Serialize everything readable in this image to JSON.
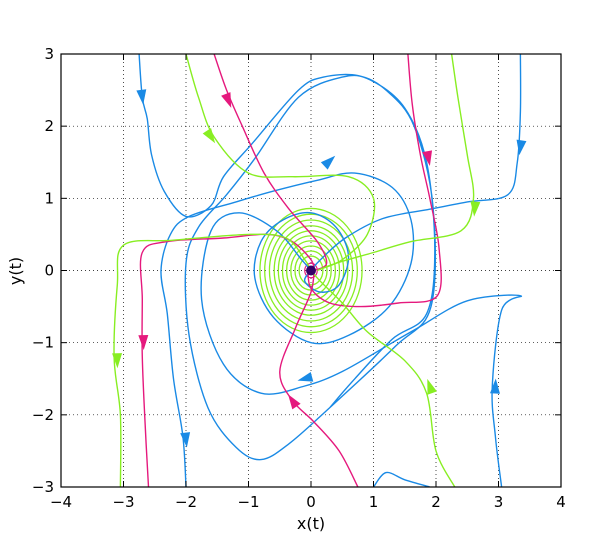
{
  "chart_data": {
    "type": "line",
    "subtype": "phase-portrait",
    "title": "",
    "xlabel": "x(t)",
    "ylabel": "y(t)",
    "xlim": [
      -4,
      4
    ],
    "ylim": [
      -3,
      3
    ],
    "xticks": [
      -4,
      -3,
      -2,
      -1,
      0,
      1,
      2,
      3,
      4
    ],
    "yticks": [
      -3,
      -2,
      -1,
      0,
      1,
      2,
      3
    ],
    "xtick_labels": [
      "−4",
      "−3",
      "−2",
      "−1",
      "0",
      "1",
      "2",
      "3",
      "4"
    ],
    "ytick_labels": [
      "−3",
      "−2",
      "−1",
      "0",
      "1",
      "2",
      "3"
    ],
    "grid": true,
    "grid_style": "dotted",
    "legend": "none",
    "equilibrium": {
      "x": 0,
      "y": 0,
      "color": "#330066"
    },
    "colors": {
      "blue": "#1a8ae5",
      "magenta": "#e5197d",
      "green": "#88ee22"
    },
    "series": [
      {
        "color": "#1a8ae5",
        "points": [
          [
            -2.75,
            3
          ],
          [
            -2.7,
            2.4
          ],
          [
            -2.62,
            2.1
          ],
          [
            -2.55,
            1.6
          ],
          [
            -2.35,
            1.1
          ],
          [
            -2.0,
            0.75
          ],
          [
            -1.6,
            0.9
          ],
          [
            -1.4,
            1.3
          ],
          [
            -0.95,
            1.75
          ],
          [
            -0.2,
            2.5
          ],
          [
            0.2,
            2.68
          ],
          [
            0.75,
            2.7
          ],
          [
            1.2,
            2.5
          ],
          [
            1.65,
            2.0
          ],
          [
            1.95,
            0.9
          ],
          [
            1.92,
            -0.5
          ],
          [
            1.35,
            -1.05
          ],
          [
            0.3,
            -1.9
          ],
          [
            -0.35,
            -2.4
          ],
          [
            -0.8,
            -2.62
          ],
          [
            -1.2,
            -2.45
          ],
          [
            -1.65,
            -1.9
          ],
          [
            -1.95,
            -0.9
          ],
          [
            -2.0,
            0.1
          ],
          [
            -1.8,
            0.6
          ],
          [
            -1.35,
            1.05
          ],
          [
            -0.9,
            1.55
          ],
          [
            -0.2,
            2.4
          ],
          [
            0.5,
            2.68
          ],
          [
            0.95,
            2.64
          ],
          [
            1.5,
            2.25
          ],
          [
            1.85,
            1.5
          ],
          [
            1.98,
            0.3
          ],
          [
            1.85,
            -0.6
          ],
          [
            1.3,
            -0.95
          ],
          [
            0.7,
            -1.5
          ],
          [
            0.3,
            -1.9
          ]
        ],
        "arrows": [
          [
            -2.7,
            2.4,
            1
          ],
          [
            0.3,
            1.52,
            1
          ]
        ]
      },
      {
        "color": "#1a8ae5",
        "points": [
          [
            3.35,
            3
          ],
          [
            3.35,
            2.2
          ],
          [
            3.3,
            1.5
          ],
          [
            3.15,
            1.05
          ],
          [
            2.5,
            0.95
          ],
          [
            1.9,
            0.85
          ],
          [
            1.15,
            0.72
          ],
          [
            0.55,
            0.45
          ],
          [
            0.15,
            0.15
          ],
          [
            0.02,
            0.02
          ]
        ],
        "arrows": [
          [
            3.35,
            1.7,
            1
          ]
        ]
      },
      {
        "color": "#1a8ae5",
        "points": [
          [
            3.05,
            -3
          ],
          [
            2.95,
            -2.3
          ],
          [
            2.9,
            -1.6
          ],
          [
            3.05,
            -0.55
          ],
          [
            3.35,
            -0.35
          ],
          [
            2.5,
            -0.42
          ],
          [
            1.7,
            -0.8
          ],
          [
            1.3,
            -1.0
          ],
          [
            0.5,
            -1.4
          ],
          [
            -0.1,
            -1.6
          ],
          [
            -0.8,
            -1.7
          ],
          [
            -1.4,
            -1.3
          ],
          [
            -1.75,
            -0.4
          ],
          [
            -1.6,
            0.55
          ],
          [
            -1.15,
            0.8
          ],
          [
            -0.55,
            0.55
          ],
          [
            -0.15,
            0.15
          ],
          [
            0.0,
            0.0
          ]
        ],
        "arrows": [
          [
            2.95,
            -1.6,
            1
          ],
          [
            -0.1,
            -1.5,
            1
          ]
        ]
      },
      {
        "color": "#1a8ae5",
        "points": [
          [
            -2.0,
            -3
          ],
          [
            -2.05,
            -2.3
          ],
          [
            -2.2,
            -1.5
          ],
          [
            -2.3,
            -0.6
          ],
          [
            -2.4,
            0.0
          ],
          [
            -2.25,
            0.5
          ],
          [
            -1.95,
            0.75
          ],
          [
            -1.2,
            0.95
          ],
          [
            -0.6,
            1.1
          ],
          [
            0.1,
            1.25
          ],
          [
            0.7,
            1.35
          ],
          [
            1.3,
            1.15
          ],
          [
            1.6,
            0.7
          ],
          [
            1.6,
            0.1
          ],
          [
            1.25,
            -0.5
          ],
          [
            0.6,
            -0.9
          ],
          [
            0.0,
            -1.0
          ],
          [
            -0.6,
            -0.65
          ],
          [
            -0.9,
            -0.1
          ],
          [
            -0.8,
            0.4
          ],
          [
            -0.45,
            0.7
          ],
          [
            0.0,
            0.8
          ],
          [
            0.4,
            0.6
          ],
          [
            0.6,
            0.2
          ],
          [
            0.45,
            -0.2
          ],
          [
            0.15,
            -0.3
          ],
          [
            -0.1,
            -0.15
          ],
          [
            0.0,
            0.0
          ]
        ],
        "arrows": [
          [
            -2.0,
            -2.35,
            -1
          ]
        ]
      },
      {
        "color": "#1a8ae5",
        "points": [
          [
            1.0,
            -3
          ],
          [
            1.2,
            -2.8
          ],
          [
            1.5,
            -2.9
          ],
          [
            1.9,
            -3
          ]
        ],
        "arrows": []
      },
      {
        "color": "#e5197d",
        "points": [
          [
            -1.55,
            3
          ],
          [
            -1.35,
            2.5
          ],
          [
            -1.1,
            2.0
          ],
          [
            -0.75,
            1.35
          ],
          [
            -0.35,
            0.85
          ],
          [
            0.1,
            0.4
          ],
          [
            0.25,
            0.1
          ],
          [
            0.05,
            0.0
          ]
        ],
        "arrows": [
          [
            -1.32,
            2.35,
            1
          ]
        ]
      },
      {
        "color": "#e5197d",
        "points": [
          [
            1.55,
            3
          ],
          [
            1.62,
            2.3
          ],
          [
            1.75,
            1.6
          ],
          [
            1.9,
            1.0
          ],
          [
            2.05,
            0.3
          ],
          [
            2.02,
            -0.35
          ],
          [
            1.4,
            -0.45
          ],
          [
            0.8,
            -0.5
          ],
          [
            0.3,
            -0.45
          ],
          [
            0.0,
            -0.25
          ],
          [
            -0.05,
            0.0
          ]
        ],
        "arrows": [
          [
            1.88,
            1.55,
            1
          ]
        ]
      },
      {
        "color": "#e5197d",
        "points": [
          [
            -2.6,
            -3
          ],
          [
            -2.65,
            -2.2
          ],
          [
            -2.7,
            -1.2
          ],
          [
            -2.7,
            -0.4
          ],
          [
            -2.7,
            0.25
          ],
          [
            -2.3,
            0.4
          ],
          [
            -1.4,
            0.45
          ],
          [
            -0.7,
            0.5
          ],
          [
            -0.3,
            0.4
          ],
          [
            0.0,
            0.15
          ],
          [
            0.05,
            0.0
          ]
        ],
        "arrows": [
          [
            -2.68,
            -1.0,
            -1
          ]
        ]
      },
      {
        "color": "#e5197d",
        "points": [
          [
            0.75,
            -3
          ],
          [
            0.45,
            -2.5
          ],
          [
            0.05,
            -2.1
          ],
          [
            -0.3,
            -1.8
          ],
          [
            -0.5,
            -1.4
          ],
          [
            -0.25,
            -0.8
          ],
          [
            0.0,
            -0.3
          ],
          [
            0.05,
            0.0
          ]
        ],
        "arrows": [
          [
            -0.3,
            -1.8,
            1
          ]
        ]
      },
      {
        "color": "#88ee22",
        "points": [
          [
            -2.0,
            3
          ],
          [
            -1.8,
            2.4
          ],
          [
            -1.55,
            1.85
          ],
          [
            -1.0,
            1.35
          ],
          [
            -0.3,
            1.3
          ],
          [
            0.6,
            1.3
          ],
          [
            1.0,
            1.0
          ],
          [
            0.9,
            0.5
          ],
          [
            0.5,
            0.15
          ],
          [
            0.15,
            0.02
          ]
        ],
        "arrows": [
          [
            -1.6,
            1.85,
            1
          ]
        ]
      },
      {
        "color": "#88ee22",
        "points": [
          [
            2.25,
            3
          ],
          [
            2.35,
            2.4
          ],
          [
            2.5,
            1.6
          ],
          [
            2.6,
            1.0
          ],
          [
            2.4,
            0.55
          ],
          [
            1.6,
            0.4
          ],
          [
            1.0,
            0.25
          ],
          [
            0.4,
            0.1
          ],
          [
            0.1,
            0.0
          ]
        ],
        "arrows": [
          [
            2.62,
            0.85,
            1
          ]
        ]
      },
      {
        "color": "#88ee22",
        "points": [
          [
            -3.05,
            -3
          ],
          [
            -3.05,
            -2.0
          ],
          [
            -3.15,
            -1.2
          ],
          [
            -3.1,
            -0.2
          ],
          [
            -3.0,
            0.35
          ],
          [
            -2.2,
            0.42
          ],
          [
            -1.0,
            0.5
          ],
          [
            -0.4,
            0.45
          ],
          [
            -0.1,
            0.15
          ],
          [
            0.0,
            0.0
          ]
        ],
        "arrows": [
          [
            -3.1,
            -1.25,
            -1
          ]
        ]
      },
      {
        "color": "#88ee22",
        "points": [
          [
            2.3,
            -3
          ],
          [
            2.0,
            -2.5
          ],
          [
            1.85,
            -1.7
          ],
          [
            1.5,
            -1.25
          ],
          [
            0.9,
            -0.85
          ],
          [
            0.5,
            -0.45
          ],
          [
            0.15,
            -0.15
          ],
          [
            0.0,
            0.0
          ]
        ],
        "arrows": [
          [
            1.9,
            -1.6,
            1
          ]
        ]
      }
    ],
    "green_spiral_rings": [
      0.2,
      0.27,
      0.34,
      0.41,
      0.48,
      0.55,
      0.62,
      0.7,
      0.78,
      0.86
    ],
    "center_spiral_rings": [
      0.05,
      0.1
    ]
  }
}
